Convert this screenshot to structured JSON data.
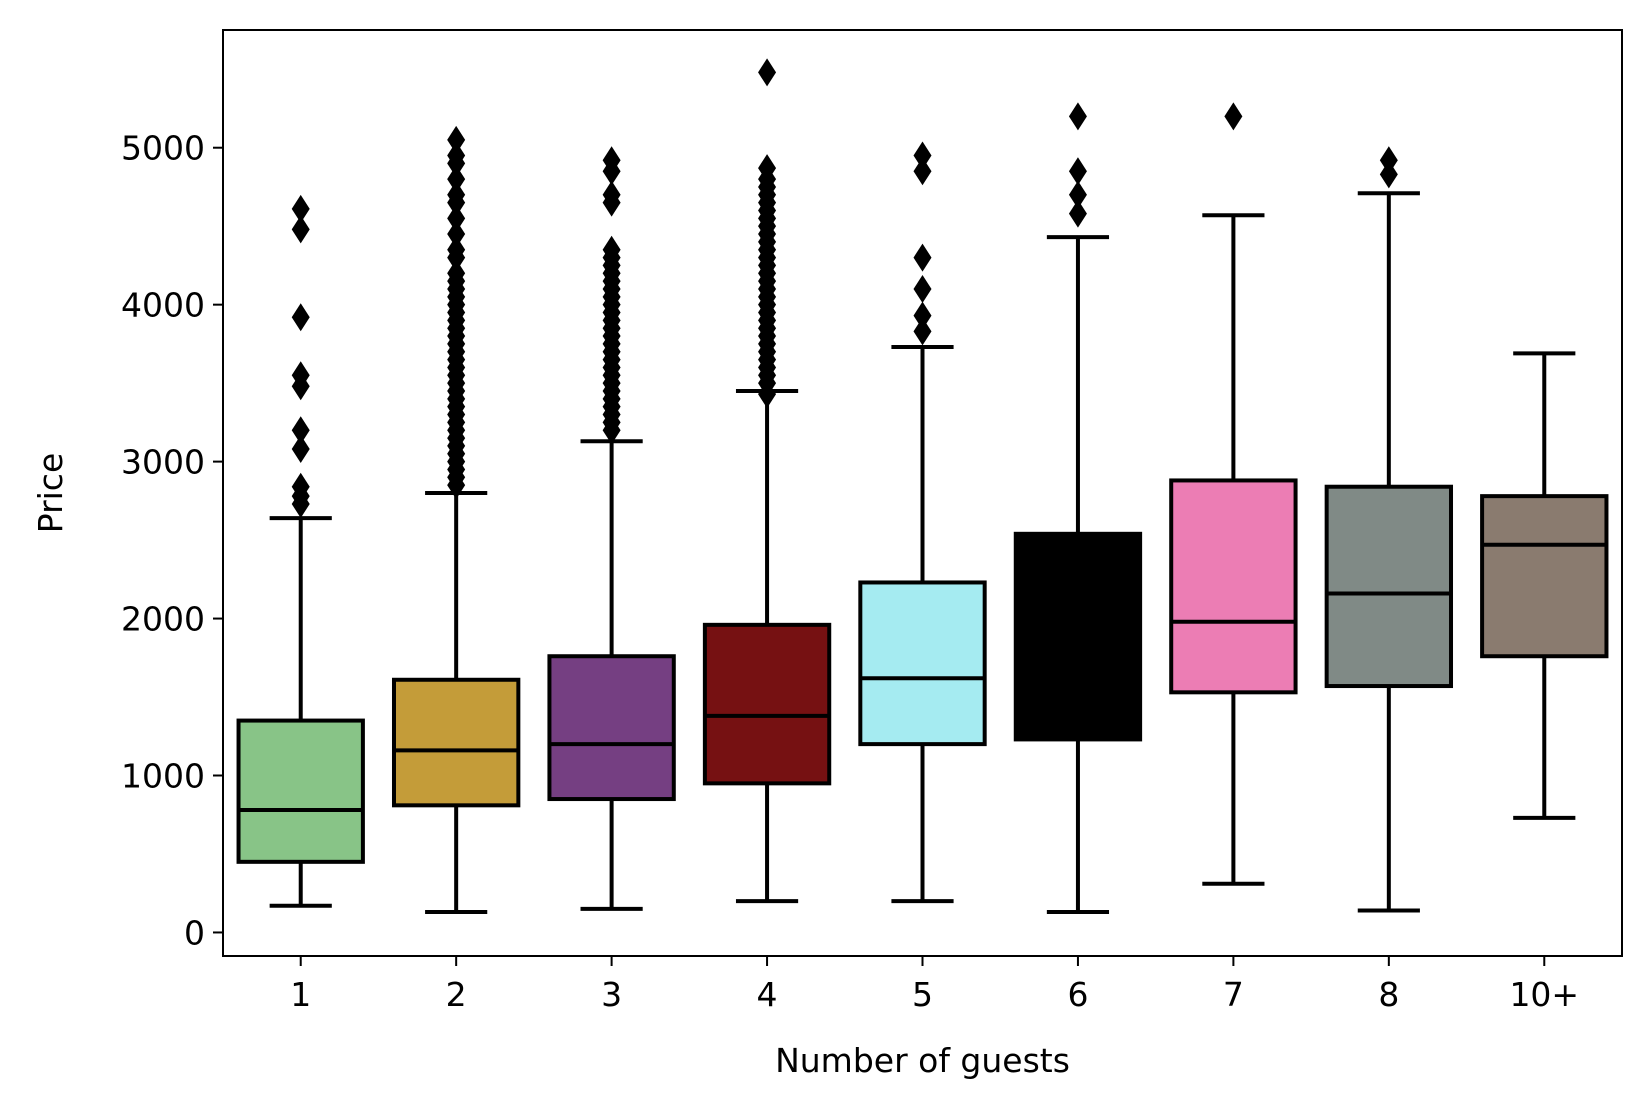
{
  "chart_data": {
    "type": "box",
    "xlabel": "Number of guests",
    "ylabel": "Price",
    "ylim": [
      -150,
      5750
    ],
    "yticks": [
      0,
      1000,
      2000,
      3000,
      4000,
      5000
    ],
    "ytick_labels": [
      "0",
      "1000",
      "2000",
      "3000",
      "4000",
      "5000"
    ],
    "categories": [
      "1",
      "2",
      "3",
      "4",
      "5",
      "6",
      "7",
      "8",
      "10+"
    ],
    "grid": false,
    "legend": "none",
    "boxes": [
      {
        "category": "1",
        "color": "#88c487",
        "whisker_low": 170,
        "q1": 450,
        "median": 780,
        "q3": 1350,
        "whisker_high": 2640,
        "outliers": [
          2730,
          2780,
          2840,
          3080,
          3200,
          3480,
          3550,
          3920,
          4480,
          4610
        ]
      },
      {
        "category": "2",
        "color": "#c49c39",
        "whisker_low": 130,
        "q1": 810,
        "median": 1160,
        "q3": 1610,
        "whisker_high": 2800,
        "outliers": [
          2850,
          2900,
          2950,
          3000,
          3050,
          3100,
          3150,
          3200,
          3250,
          3300,
          3350,
          3400,
          3450,
          3500,
          3550,
          3600,
          3650,
          3700,
          3750,
          3800,
          3850,
          3900,
          3950,
          4000,
          4050,
          4100,
          4150,
          4200,
          4300,
          4350,
          4450,
          4550,
          4650,
          4700,
          4800,
          4900,
          4950,
          5050
        ]
      },
      {
        "category": "3",
        "color": "#753f82",
        "whisker_low": 150,
        "q1": 850,
        "median": 1200,
        "q3": 1760,
        "whisker_high": 3130,
        "outliers": [
          3200,
          3250,
          3300,
          3350,
          3400,
          3450,
          3500,
          3550,
          3600,
          3650,
          3700,
          3750,
          3800,
          3850,
          3900,
          3950,
          4000,
          4050,
          4100,
          4150,
          4200,
          4250,
          4300,
          4350,
          4650,
          4700,
          4850,
          4920
        ]
      },
      {
        "category": "4",
        "color": "#761112",
        "whisker_low": 200,
        "q1": 950,
        "median": 1380,
        "q3": 1960,
        "whisker_high": 3450,
        "outliers": [
          3430,
          3500,
          3550,
          3600,
          3650,
          3700,
          3750,
          3800,
          3850,
          3900,
          3950,
          4000,
          4050,
          4100,
          4150,
          4200,
          4250,
          4300,
          4350,
          4400,
          4450,
          4500,
          4550,
          4600,
          4650,
          4700,
          4750,
          4800,
          4870,
          5480
        ]
      },
      {
        "category": "5",
        "color": "#a5ebf1",
        "whisker_low": 200,
        "q1": 1200,
        "median": 1620,
        "q3": 2230,
        "whisker_high": 3730,
        "outliers": [
          3830,
          3930,
          4100,
          4300,
          4850,
          4950
        ]
      },
      {
        "category": "6",
        "color": "#000000",
        "whisker_low": 130,
        "q1": 1230,
        "median": 1780,
        "q3": 2540,
        "whisker_high": 4430,
        "outliers": [
          4580,
          4700,
          4850,
          5200
        ]
      },
      {
        "category": "7",
        "color": "#ec7db4",
        "whisker_low": 310,
        "q1": 1530,
        "median": 1980,
        "q3": 2880,
        "whisker_high": 4570,
        "outliers": [
          5200
        ]
      },
      {
        "category": "8",
        "color": "#808a86",
        "whisker_low": 140,
        "q1": 1570,
        "median": 2160,
        "q3": 2840,
        "whisker_high": 4710,
        "outliers": [
          4830,
          4920
        ]
      },
      {
        "category": "10+",
        "color": "#8a7b6f",
        "whisker_low": 730,
        "q1": 1760,
        "median": 2470,
        "q3": 2780,
        "whisker_high": 3690,
        "outliers": []
      }
    ]
  }
}
